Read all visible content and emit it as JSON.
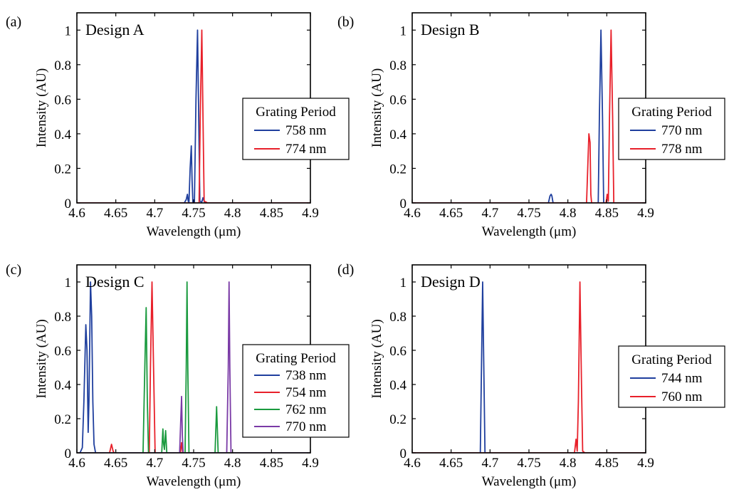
{
  "figure": {
    "xlabel": "Wavelength (μm)",
    "ylabel": "Intensity (AU)"
  },
  "chart_data": [
    {
      "type": "line",
      "panel_label": "(a)",
      "title": "Design A",
      "xlabel": "Wavelength (μm)",
      "ylabel": "Intensity (AU)",
      "xlim": [
        4.6,
        4.9
      ],
      "ylim": [
        0,
        1.1
      ],
      "xticks": [
        "4.6",
        "4.65",
        "4.7",
        "4.75",
        "4.8",
        "4.85",
        "4.9"
      ],
      "yticks": [
        "0",
        "0.2",
        "0.4",
        "0.6",
        "0.8",
        "1"
      ],
      "legend": {
        "title": "Grating Period",
        "position": "right"
      },
      "series": [
        {
          "name": "758 nm",
          "color": "#1f3f9e",
          "points": [
            [
              4.6,
              0
            ],
            [
              4.738,
              0
            ],
            [
              4.7405,
              0.02
            ],
            [
              4.742,
              0.05
            ],
            [
              4.743,
              0.01
            ],
            [
              4.744,
              0.005
            ],
            [
              4.7455,
              0.2
            ],
            [
              4.747,
              0.33
            ],
            [
              4.748,
              0.13
            ],
            [
              4.749,
              0.005
            ],
            [
              4.751,
              0.005
            ],
            [
              4.753,
              0.6
            ],
            [
              4.755,
              1.0
            ],
            [
              4.7565,
              0.5
            ],
            [
              4.758,
              0.01
            ],
            [
              4.7605,
              0.005
            ],
            [
              4.762,
              0.03
            ],
            [
              4.764,
              0.005
            ],
            [
              4.766,
              0
            ],
            [
              4.9,
              0
            ]
          ]
        },
        {
          "name": "774 nm",
          "color": "#e8202a",
          "points": [
            [
              4.6,
              0
            ],
            [
              4.757,
              0
            ],
            [
              4.7585,
              0.5
            ],
            [
              4.7605,
              1.0
            ],
            [
              4.762,
              0.5
            ],
            [
              4.7635,
              0.01
            ],
            [
              4.766,
              0.005
            ],
            [
              4.768,
              0
            ],
            [
              4.9,
              0
            ]
          ]
        }
      ]
    },
    {
      "type": "line",
      "panel_label": "(b)",
      "title": "Design B",
      "xlabel": "Wavelength (μm)",
      "ylabel": "Intensity (AU)",
      "xlim": [
        4.6,
        4.9
      ],
      "ylim": [
        0,
        1.1
      ],
      "xticks": [
        "4.6",
        "4.65",
        "4.7",
        "4.75",
        "4.8",
        "4.85",
        "4.9"
      ],
      "yticks": [
        "0",
        "0.2",
        "0.4",
        "0.6",
        "0.8",
        "1"
      ],
      "legend": {
        "title": "Grating Period",
        "position": "right"
      },
      "series": [
        {
          "name": "770 nm",
          "color": "#1f3f9e",
          "points": [
            [
              4.6,
              0
            ],
            [
              4.775,
              0
            ],
            [
              4.777,
              0.04
            ],
            [
              4.7785,
              0.05
            ],
            [
              4.7795,
              0.04
            ],
            [
              4.781,
              0
            ],
            [
              4.839,
              0
            ],
            [
              4.8405,
              0.5
            ],
            [
              4.8425,
              1.0
            ],
            [
              4.8445,
              0.5
            ],
            [
              4.846,
              0
            ],
            [
              4.9,
              0
            ]
          ]
        },
        {
          "name": "778 nm",
          "color": "#e8202a",
          "points": [
            [
              4.6,
              0
            ],
            [
              4.824,
              0
            ],
            [
              4.8255,
              0.2
            ],
            [
              4.827,
              0.4
            ],
            [
              4.8285,
              0.35
            ],
            [
              4.8295,
              0.05
            ],
            [
              4.8305,
              0
            ],
            [
              4.849,
              0
            ],
            [
              4.8505,
              0.05
            ],
            [
              4.852,
              0.01
            ],
            [
              4.8535,
              0.5
            ],
            [
              4.8555,
              1.0
            ],
            [
              4.8575,
              0.5
            ],
            [
              4.859,
              0
            ],
            [
              4.9,
              0
            ]
          ]
        }
      ]
    },
    {
      "type": "line",
      "panel_label": "(c)",
      "title": "Design C",
      "xlabel": "Wavelength (μm)",
      "ylabel": "Intensity (AU)",
      "xlim": [
        4.6,
        4.9
      ],
      "ylim": [
        0,
        1.1
      ],
      "xticks": [
        "4.6",
        "4.65",
        "4.7",
        "4.75",
        "4.8",
        "4.85",
        "4.9"
      ],
      "yticks": [
        "0",
        "0.2",
        "0.4",
        "0.6",
        "0.8",
        "1"
      ],
      "legend": {
        "title": "Grating Period",
        "position": "right"
      },
      "series": [
        {
          "name": "738 nm",
          "color": "#1f3f9e",
          "points": [
            [
              4.6,
              0
            ],
            [
              4.604,
              0
            ],
            [
              4.607,
              0.03
            ],
            [
              4.609,
              0.3
            ],
            [
              4.6115,
              0.75
            ],
            [
              4.613,
              0.6
            ],
            [
              4.6145,
              0.12
            ],
            [
              4.6155,
              0.3
            ],
            [
              4.6175,
              1.0
            ],
            [
              4.619,
              0.8
            ],
            [
              4.6205,
              0.3
            ],
            [
              4.622,
              0.05
            ],
            [
              4.624,
              0
            ],
            [
              4.9,
              0
            ]
          ]
        },
        {
          "name": "754 nm",
          "color": "#e8202a",
          "points": [
            [
              4.6,
              0
            ],
            [
              4.642,
              0
            ],
            [
              4.6445,
              0.05
            ],
            [
              4.6465,
              0.01
            ],
            [
              4.648,
              0
            ],
            [
              4.693,
              0
            ],
            [
              4.6945,
              0.5
            ],
            [
              4.6965,
              1.0
            ],
            [
              4.6985,
              0.5
            ],
            [
              4.7005,
              0
            ],
            [
              4.733,
              0
            ],
            [
              4.7345,
              0.06
            ],
            [
              4.736,
              0
            ],
            [
              4.9,
              0
            ]
          ]
        },
        {
          "name": "762 nm",
          "color": "#1a9a3e",
          "points": [
            [
              4.6,
              0
            ],
            [
              4.685,
              0
            ],
            [
              4.6875,
              0.55
            ],
            [
              4.689,
              0.85
            ],
            [
              4.6905,
              0.3
            ],
            [
              4.692,
              0
            ],
            [
              4.709,
              0
            ],
            [
              4.7105,
              0.14
            ],
            [
              4.7115,
              0.05
            ],
            [
              4.7125,
              0.02
            ],
            [
              4.714,
              0.13
            ],
            [
              4.7155,
              0
            ],
            [
              4.739,
              0
            ],
            [
              4.7405,
              0.5
            ],
            [
              4.7415,
              1.0
            ],
            [
              4.7425,
              0.5
            ],
            [
              4.744,
              0
            ],
            [
              4.7775,
              0
            ],
            [
              4.7795,
              0.27
            ],
            [
              4.7815,
              0
            ],
            [
              4.9,
              0
            ]
          ]
        },
        {
          "name": "770 nm",
          "color": "#7a3aa6",
          "points": [
            [
              4.6,
              0
            ],
            [
              4.732,
              0
            ],
            [
              4.7335,
              0.2
            ],
            [
              4.7345,
              0.33
            ],
            [
              4.7355,
              0.1
            ],
            [
              4.7365,
              0
            ],
            [
              4.7925,
              0
            ],
            [
              4.7945,
              0.5
            ],
            [
              4.7955,
              1.0
            ],
            [
              4.7965,
              0.5
            ],
            [
              4.798,
              0
            ],
            [
              4.9,
              0
            ]
          ]
        }
      ]
    },
    {
      "type": "line",
      "panel_label": "(d)",
      "title": "Design D",
      "xlabel": "Wavelength (μm)",
      "ylabel": "Intensity (AU)",
      "xlim": [
        4.6,
        4.9
      ],
      "ylim": [
        0,
        1.1
      ],
      "xticks": [
        "4.6",
        "4.65",
        "4.7",
        "4.75",
        "4.8",
        "4.85",
        "4.9"
      ],
      "yticks": [
        "0",
        "0.2",
        "0.4",
        "0.6",
        "0.8",
        "1"
      ],
      "legend": {
        "title": "Grating Period",
        "position": "right"
      },
      "series": [
        {
          "name": "744 nm",
          "color": "#1f3f9e",
          "points": [
            [
              4.6,
              0
            ],
            [
              4.6875,
              0
            ],
            [
              4.689,
              0.5
            ],
            [
              4.6905,
              1.0
            ],
            [
              4.692,
              0.5
            ],
            [
              4.6935,
              0
            ],
            [
              4.9,
              0
            ]
          ]
        },
        {
          "name": "760 nm",
          "color": "#e8202a",
          "points": [
            [
              4.6,
              0
            ],
            [
              4.8085,
              0
            ],
            [
              4.8105,
              0.08
            ],
            [
              4.812,
              0.01
            ],
            [
              4.8135,
              0.3
            ],
            [
              4.8155,
              1.0
            ],
            [
              4.8175,
              0.4
            ],
            [
              4.819,
              0.01
            ],
            [
              4.8205,
              0.005
            ],
            [
              4.822,
              0
            ],
            [
              4.9,
              0
            ]
          ]
        }
      ]
    }
  ]
}
